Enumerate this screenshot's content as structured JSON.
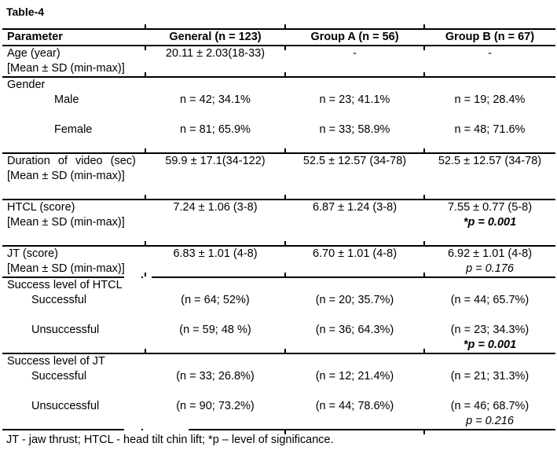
{
  "title": "Table-4",
  "footnote": "JT - jaw thrust; HTCL - head tilt chin lift; *p – level of significance.",
  "table": {
    "columns": [
      "Parameter",
      "General (n = 123)",
      "Group A (n = 56)",
      "Group B (n = 67)"
    ],
    "sections": [
      {
        "name": "age-row",
        "separator": false,
        "lines": [
          {
            "cells": [
              "Age (year)",
              "20.11 ± 2.03(18-33)",
              "-",
              "-"
            ]
          },
          {
            "cells": [
              "[Mean ± SD (min-max)]",
              "",
              "",
              ""
            ]
          }
        ]
      },
      {
        "name": "gender-rows",
        "separator": true,
        "lines": [
          {
            "cells": [
              "Gender",
              "",
              "",
              ""
            ]
          },
          {
            "ind": 2,
            "cells": [
              "Male",
              "n = 42; 34.1%",
              "n = 23; 41.1%",
              "n = 19; 28.4%"
            ]
          },
          {
            "cells": [
              "",
              "",
              "",
              ""
            ]
          },
          {
            "ind": 2,
            "cells": [
              "Female",
              "n = 81; 65.9%",
              "n = 33; 58.9%",
              "n = 48; 71.6%"
            ]
          },
          {
            "cells": [
              "",
              "",
              "",
              ""
            ]
          }
        ]
      },
      {
        "name": "duration-row",
        "separator": true,
        "lines": [
          {
            "justify_label": true,
            "cells": [
              "Duration of video (sec)",
              "59.9 ± 17.1(34-122)",
              "52.5 ± 12.57 (34-78)",
              "52.5 ± 12.57 (34-78)"
            ]
          },
          {
            "cells": [
              "[Mean ± SD (min-max)]",
              "",
              "",
              ""
            ]
          },
          {
            "cells": [
              "",
              "",
              "",
              ""
            ]
          }
        ]
      },
      {
        "name": "htcl-row",
        "separator": true,
        "lines": [
          {
            "cells": [
              "HTCL (score)",
              "7.24 ± 1.06 (3-8)",
              "6.87 ± 1.24 (3-8)",
              "7.55 ± 0.77 (5-8)"
            ]
          },
          {
            "cells": [
              "[Mean ± SD (min-max)]",
              "",
              "",
              {
                "t": "*p = 0.001",
                "s": "bi"
              }
            ]
          },
          {
            "cells": [
              "",
              "",
              "",
              ""
            ]
          }
        ]
      },
      {
        "name": "jt-row",
        "separator": true,
        "lines": [
          {
            "cells": [
              "JT (score)",
              "6.83 ± 1.01 (4-8)",
              "6.70 ± 1.01 (4-8)",
              "6.92 ± 1.01 (4-8)"
            ]
          },
          {
            "cells": [
              "[Mean ± SD (min-max)]",
              "",
              "",
              {
                "t": "p = 0.176",
                "s": "i"
              }
            ]
          }
        ]
      },
      {
        "name": "success-htcl-rows",
        "separator": true,
        "lines": [
          {
            "cells": [
              "Success level of HTCL",
              "",
              "",
              ""
            ]
          },
          {
            "ind": 1,
            "cells": [
              "Successful",
              "(n = 64; 52%)",
              "(n = 20; 35.7%)",
              "(n = 44; 65.7%)"
            ]
          },
          {
            "cells": [
              "",
              "",
              "",
              ""
            ]
          },
          {
            "ind": 1,
            "cells": [
              "Unsuccessful",
              "(n = 59; 48 %)",
              "(n = 36; 64.3%)",
              "(n = 23; 34.3%)"
            ]
          },
          {
            "cells": [
              "",
              "",
              "",
              {
                "t": "*p = 0.001",
                "s": "bi"
              }
            ]
          }
        ]
      },
      {
        "name": "success-jt-rows",
        "separator": true,
        "lines": [
          {
            "cells": [
              "Success level of JT",
              "",
              "",
              ""
            ]
          },
          {
            "ind": 1,
            "cells": [
              "Successful",
              "(n = 33; 26.8%)",
              "(n = 12; 21.4%)",
              "(n = 21; 31.3%)"
            ]
          },
          {
            "cells": [
              "",
              "",
              "",
              ""
            ]
          },
          {
            "ind": 1,
            "cells": [
              "Unsuccessful",
              "(n = 90; 73.2%)",
              "(n = 44; 78.6%)",
              "(n = 46; 68.7%)"
            ]
          },
          {
            "cells": [
              "",
              "",
              "",
              {
                "t": "p = 0.216",
                "s": "i"
              }
            ]
          }
        ]
      }
    ]
  }
}
